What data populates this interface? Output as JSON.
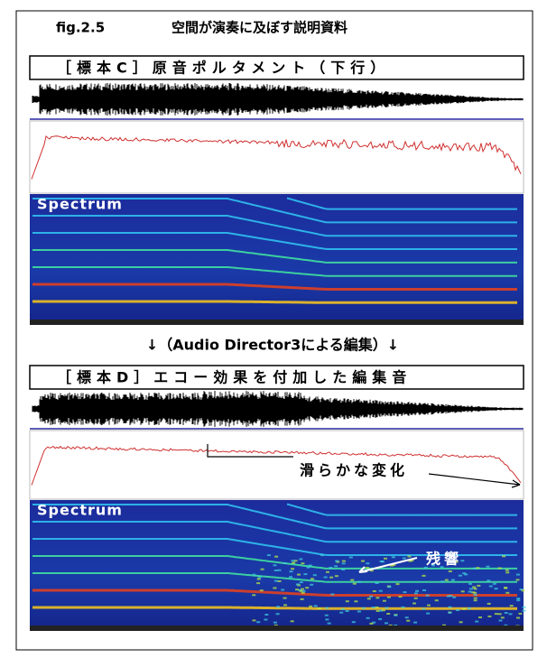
{
  "figure": {
    "label": "fig.2.5",
    "title": "空間が演奏に及ぼす説明資料"
  },
  "panels": [
    {
      "title": "［標本C］原音ポルタメント（下行）",
      "spectrum_label": "Spectrum"
    },
    {
      "title": "［標本D］エコー効果を付加した編集音",
      "spectrum_label": "Spectrum",
      "annotations": [
        "滑らかな変化",
        "残響"
      ]
    }
  ],
  "transition": "↓（Audio Director3による編集）↓"
}
